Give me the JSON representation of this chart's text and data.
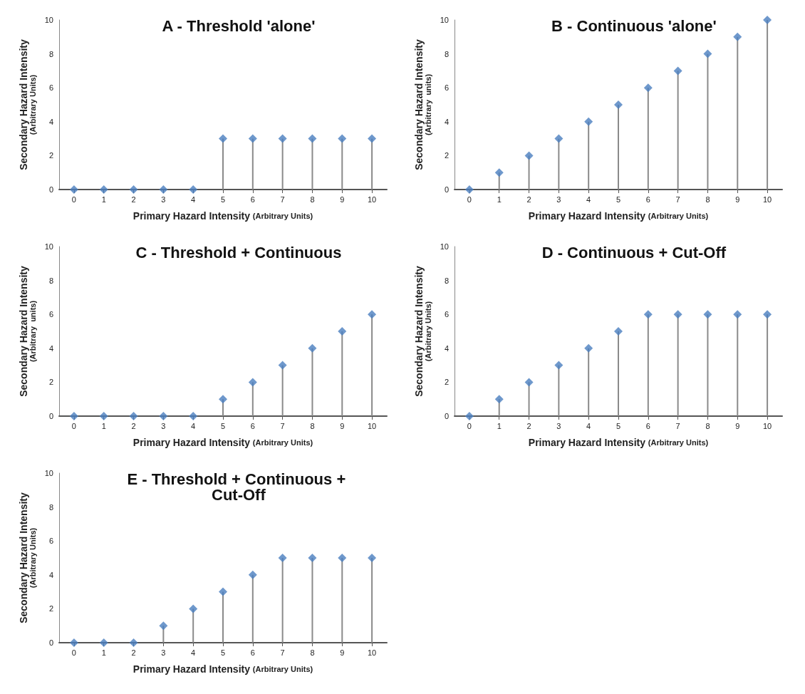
{
  "chart_data": [
    {
      "type": "lollipop",
      "title": "A - Threshold 'alone'",
      "xlabel": "Primary Hazard Intensity (Arbitrary Units)",
      "ylabel": "Secondary Hazard Intensity (Arbitrary Units)",
      "categories": [
        "0",
        "1",
        "2",
        "3",
        "4",
        "5",
        "6",
        "7",
        "8",
        "9",
        "10"
      ],
      "values": [
        0,
        0,
        0,
        0,
        0,
        3,
        3,
        3,
        3,
        3,
        3
      ],
      "color": "#4a7ebf",
      "ylim": [
        0,
        10
      ],
      "yticks": [
        0,
        2,
        4,
        6,
        8,
        10
      ],
      "grid": false,
      "marker": "diamond"
    },
    {
      "type": "lollipop",
      "title": "B - Continuous 'alone'",
      "xlabel": "Primary Hazard Intensity (Arbitrary Units)",
      "ylabel": "Secondary Hazard Intensity (Arbitrary  units)",
      "categories": [
        "0",
        "1",
        "2",
        "3",
        "4",
        "5",
        "6",
        "7",
        "8",
        "9",
        "10"
      ],
      "values": [
        0,
        1,
        2,
        3,
        4,
        5,
        6,
        7,
        8,
        9,
        10
      ],
      "color": "#4a7ebf",
      "ylim": [
        0,
        10
      ],
      "yticks": [
        0,
        2,
        4,
        6,
        8,
        10
      ],
      "grid": false,
      "marker": "diamond"
    },
    {
      "type": "lollipop",
      "title": "C - Threshold + Continuous",
      "xlabel": "Primary Hazard Intensity (Arbitrary Units)",
      "ylabel": "Secondary Hazard Intensity (Arbitrary  units)",
      "categories": [
        "0",
        "1",
        "2",
        "3",
        "4",
        "5",
        "6",
        "7",
        "8",
        "9",
        "10"
      ],
      "values": [
        0,
        0,
        0,
        0,
        0,
        1,
        2,
        3,
        4,
        5,
        6
      ],
      "color": "#4a7ebf",
      "ylim": [
        0,
        10
      ],
      "yticks": [
        0,
        2,
        4,
        6,
        8,
        10
      ],
      "grid": false,
      "marker": "diamond"
    },
    {
      "type": "lollipop",
      "title": "D - Continuous + Cut-Off",
      "xlabel": "Primary Hazard Intensity (Arbitrary Units)",
      "ylabel": "Secondary Hazard Intensity (Arbitrary Units)",
      "categories": [
        "0",
        "1",
        "2",
        "3",
        "4",
        "5",
        "6",
        "7",
        "8",
        "9",
        "10"
      ],
      "values": [
        0,
        1,
        2,
        3,
        4,
        5,
        6,
        6,
        6,
        6,
        6
      ],
      "color": "#4a7ebf",
      "ylim": [
        0,
        10
      ],
      "yticks": [
        0,
        2,
        4,
        6,
        8,
        10
      ],
      "grid": false,
      "marker": "diamond"
    },
    {
      "type": "lollipop",
      "title": "E - Threshold + Continuous + Cut-Off",
      "xlabel": "Primary Hazard Intensity (Arbitrary Units)",
      "ylabel": "Secondary Hazard Intensity (Arbitrary Units)",
      "categories": [
        "0",
        "1",
        "2",
        "3",
        "4",
        "5",
        "6",
        "7",
        "8",
        "9",
        "10"
      ],
      "values": [
        0,
        0,
        0,
        1,
        2,
        3,
        4,
        5,
        5,
        5,
        5
      ],
      "color": "#4a7ebf",
      "ylim": [
        0,
        10
      ],
      "yticks": [
        0,
        2,
        4,
        6,
        8,
        10
      ],
      "grid": false,
      "marker": "diamond"
    }
  ]
}
